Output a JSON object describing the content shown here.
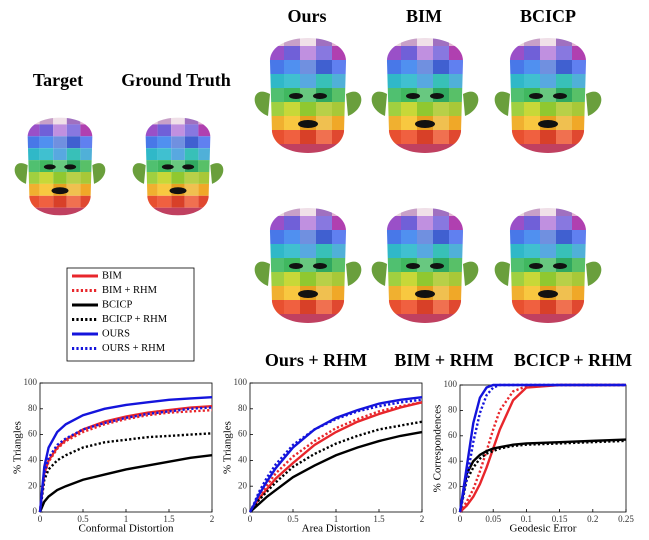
{
  "labels": {
    "target": "Target",
    "ground_truth": "Ground Truth",
    "ours": "Ours",
    "bim": "BIM",
    "bcicp": "BCICP",
    "ours_rhm": "Ours + RHM",
    "bim_rhm": "BIM + RHM",
    "bcicp_rhm": "BCICP + RHM"
  },
  "legend": [
    {
      "name": "BIM",
      "color": "#e8262b",
      "dashed": false
    },
    {
      "name": "BIM + RHM",
      "color": "#e8262b",
      "dashed": true
    },
    {
      "name": "BCICP",
      "color": "#000000",
      "dashed": false
    },
    {
      "name": "BCICP + RHM",
      "color": "#000000",
      "dashed": true
    },
    {
      "name": "OURS",
      "color": "#1414dc",
      "dashed": false
    },
    {
      "name": "OURS + RHM",
      "color": "#1414dc",
      "dashed": true
    }
  ],
  "chart_data": [
    {
      "type": "line",
      "xlabel": "Conformal Distortion",
      "ylabel": "% Triangles",
      "x": [
        0,
        0.05,
        0.1,
        0.2,
        0.3,
        0.5,
        0.75,
        1,
        1.25,
        1.5,
        1.75,
        2
      ],
      "xlim": [
        0,
        2
      ],
      "xticks": [
        0,
        0.5,
        1,
        1.5,
        2
      ],
      "ylim": [
        0,
        100
      ],
      "yticks": [
        0,
        20,
        40,
        60,
        80,
        100
      ],
      "series": [
        {
          "color": "#e8262b",
          "dashed": false,
          "values": [
            0,
            30,
            40,
            50,
            56,
            64,
            70,
            74,
            77,
            79,
            81,
            82
          ]
        },
        {
          "color": "#e8262b",
          "dashed": true,
          "values": [
            0,
            29,
            39,
            49,
            55,
            62,
            68,
            72,
            75,
            77,
            78,
            79
          ]
        },
        {
          "color": "#000000",
          "dashed": false,
          "values": [
            0,
            8,
            12,
            17,
            20,
            25,
            29,
            33,
            36,
            39,
            42,
            44
          ]
        },
        {
          "color": "#000000",
          "dashed": true,
          "values": [
            0,
            25,
            33,
            40,
            44,
            50,
            54,
            56,
            58,
            59,
            60,
            61
          ]
        },
        {
          "color": "#1414dc",
          "dashed": false,
          "values": [
            0,
            35,
            50,
            62,
            68,
            75,
            80,
            83,
            85,
            87,
            88,
            89
          ]
        },
        {
          "color": "#1414dc",
          "dashed": true,
          "values": [
            0,
            30,
            42,
            52,
            57,
            64,
            69,
            73,
            76,
            78,
            80,
            81
          ]
        }
      ]
    },
    {
      "type": "line",
      "xlabel": "Area Distortion",
      "ylabel": "% Triangles",
      "x": [
        0,
        0.05,
        0.1,
        0.2,
        0.3,
        0.5,
        0.75,
        1,
        1.25,
        1.5,
        1.75,
        2
      ],
      "xlim": [
        0,
        2
      ],
      "xticks": [
        0,
        0.5,
        1,
        1.5,
        2
      ],
      "ylim": [
        0,
        100
      ],
      "yticks": [
        0,
        20,
        40,
        60,
        80,
        100
      ],
      "series": [
        {
          "color": "#e8262b",
          "dashed": false,
          "values": [
            0,
            5,
            10,
            18,
            26,
            38,
            52,
            62,
            70,
            76,
            81,
            85
          ]
        },
        {
          "color": "#e8262b",
          "dashed": true,
          "values": [
            0,
            6,
            12,
            21,
            30,
            43,
            55,
            65,
            72,
            78,
            82,
            85
          ]
        },
        {
          "color": "#000000",
          "dashed": false,
          "values": [
            0,
            3,
            6,
            12,
            17,
            27,
            36,
            44,
            50,
            55,
            59,
            62
          ]
        },
        {
          "color": "#000000",
          "dashed": true,
          "values": [
            0,
            4,
            9,
            16,
            23,
            35,
            45,
            53,
            59,
            64,
            67,
            70
          ]
        },
        {
          "color": "#1414dc",
          "dashed": false,
          "values": [
            0,
            6,
            13,
            24,
            34,
            50,
            64,
            73,
            79,
            84,
            87,
            89
          ]
        },
        {
          "color": "#1414dc",
          "dashed": true,
          "values": [
            0,
            7,
            15,
            27,
            37,
            52,
            64,
            72,
            78,
            82,
            85,
            87
          ]
        }
      ]
    },
    {
      "type": "line",
      "xlabel": "Geodesic Error",
      "ylabel": "% Correspondences",
      "x": [
        0,
        0.01,
        0.02,
        0.03,
        0.04,
        0.05,
        0.06,
        0.08,
        0.1,
        0.15,
        0.2,
        0.25
      ],
      "xlim": [
        0,
        0.25
      ],
      "xticks": [
        0,
        0.05,
        0.1,
        0.15,
        0.2,
        0.25
      ],
      "ylim": [
        0,
        100
      ],
      "yticks": [
        0,
        20,
        40,
        60,
        80,
        100
      ],
      "series": [
        {
          "color": "#e8262b",
          "dashed": false,
          "values": [
            0,
            5,
            12,
            22,
            35,
            50,
            65,
            88,
            98,
            100,
            100,
            100
          ]
        },
        {
          "color": "#e8262b",
          "dashed": true,
          "values": [
            0,
            8,
            18,
            32,
            48,
            65,
            80,
            95,
            99,
            100,
            100,
            100
          ]
        },
        {
          "color": "#000000",
          "dashed": false,
          "values": [
            0,
            30,
            40,
            45,
            48,
            50,
            51,
            53,
            54,
            55,
            56,
            57
          ]
        },
        {
          "color": "#000000",
          "dashed": true,
          "values": [
            0,
            25,
            35,
            42,
            46,
            48,
            50,
            52,
            53,
            54,
            55,
            56
          ]
        },
        {
          "color": "#1414dc",
          "dashed": false,
          "values": [
            0,
            35,
            70,
            90,
            98,
            100,
            100,
            100,
            100,
            100,
            100,
            100
          ]
        },
        {
          "color": "#1414dc",
          "dashed": true,
          "values": [
            0,
            25,
            55,
            78,
            92,
            98,
            100,
            100,
            100,
            100,
            100,
            100
          ]
        }
      ]
    }
  ]
}
